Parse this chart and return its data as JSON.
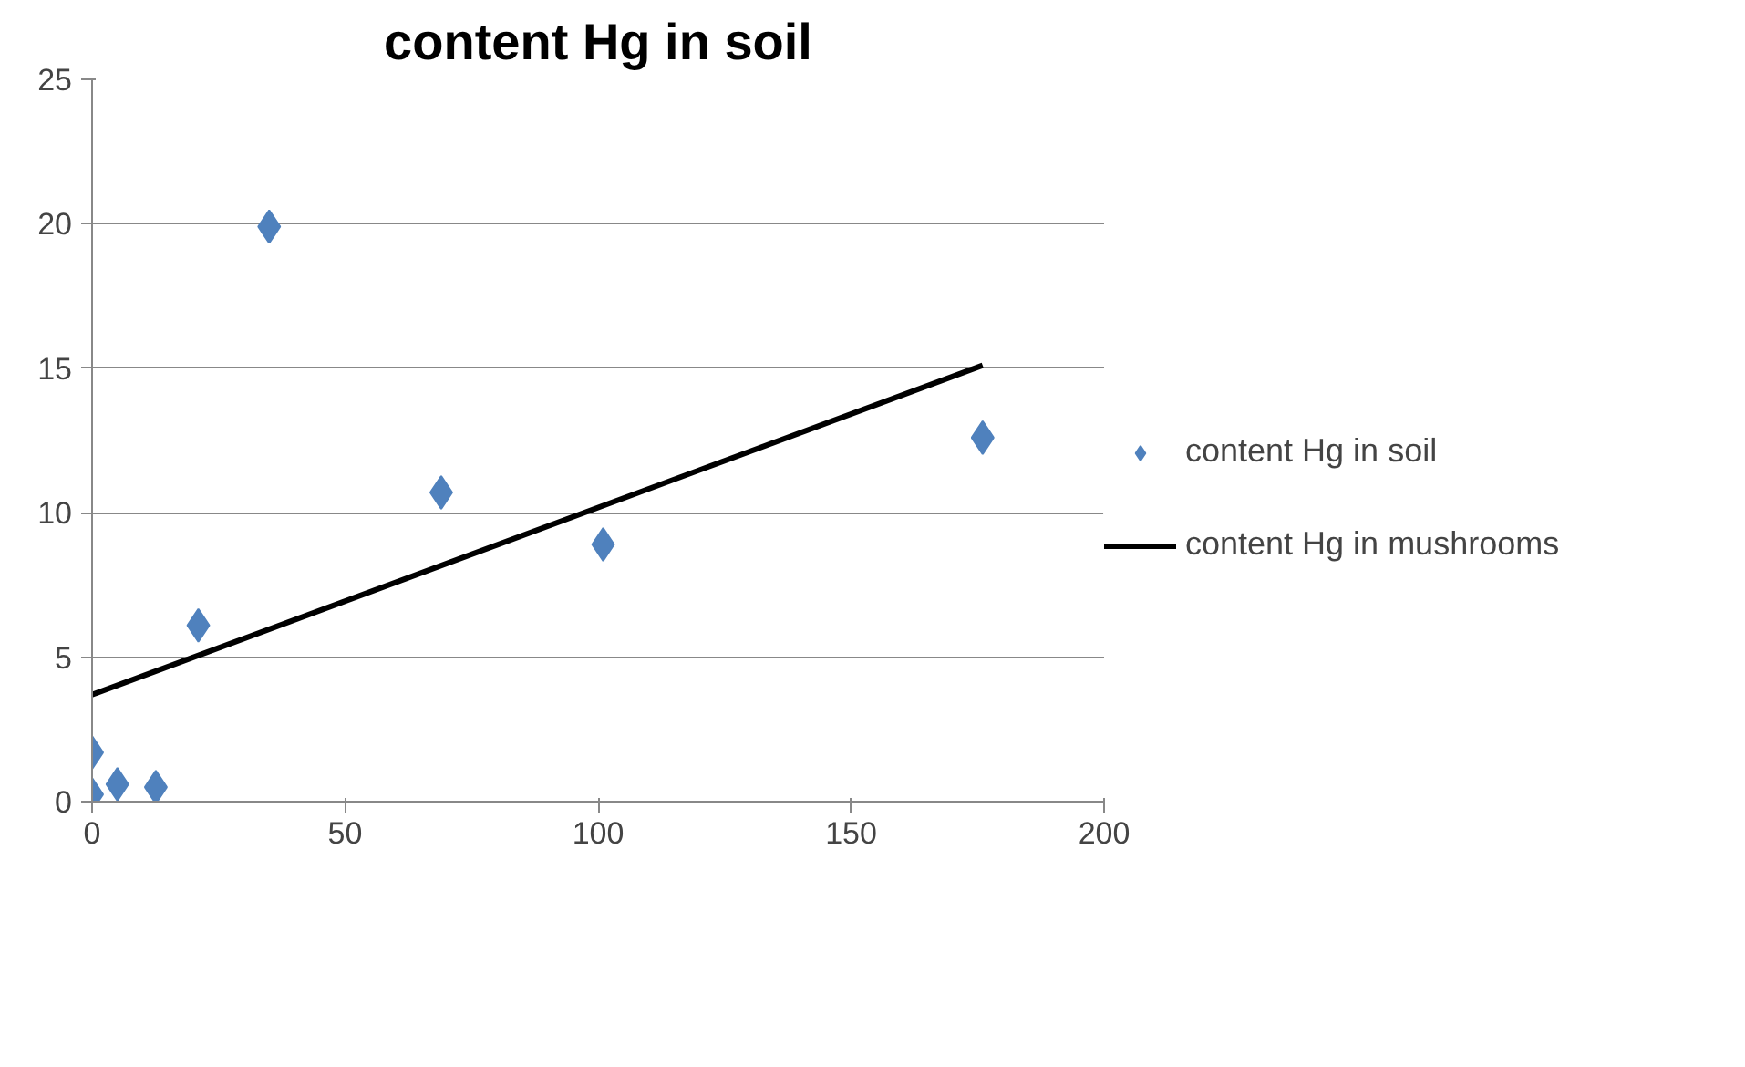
{
  "chart_data": {
    "type": "scatter",
    "title": "content Hg in soil",
    "grid": "y",
    "legend": "right",
    "xlim": [
      0,
      200
    ],
    "xticks": [
      0,
      50,
      100,
      150,
      200
    ],
    "ylim": [
      0,
      25
    ],
    "yticks": [
      0,
      5,
      10,
      15,
      20,
      25
    ],
    "series": [
      {
        "name": "content Hg in soil",
        "marker": "diamond",
        "color": "#4f81bd",
        "x": [
          0,
          0,
          5,
          12.6,
          21,
          35,
          69,
          101,
          176
        ],
        "values": [
          1.7,
          0.25,
          0.6,
          0.5,
          6.1,
          19.9,
          10.7,
          8.9,
          12.6
        ]
      },
      {
        "name": "content Hg in mushrooms",
        "type": "line",
        "marker": "none",
        "color": "#000000",
        "x": [
          0,
          176
        ],
        "values": [
          3.7,
          15.1
        ]
      }
    ]
  }
}
